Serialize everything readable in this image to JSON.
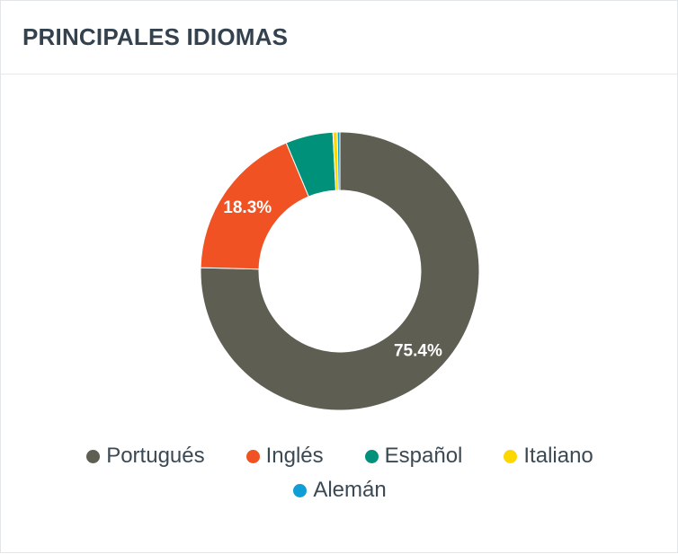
{
  "header": {
    "title": "PRINCIPALES IDIOMAS"
  },
  "chart_data": {
    "type": "pie",
    "variant": "donut",
    "title": "PRINCIPALES IDIOMAS",
    "categories": [
      "Portugués",
      "Inglés",
      "Español",
      "Italiano",
      "Alemán"
    ],
    "values": [
      75.4,
      18.3,
      5.5,
      0.5,
      0.3
    ],
    "unit": "%",
    "data_labels": [
      "75.4%",
      "18.3%",
      "",
      "",
      ""
    ],
    "colors": [
      "#5e5f52",
      "#f05223",
      "#00917a",
      "#fcd800",
      "#0f9ed6"
    ],
    "legend_position": "bottom"
  }
}
